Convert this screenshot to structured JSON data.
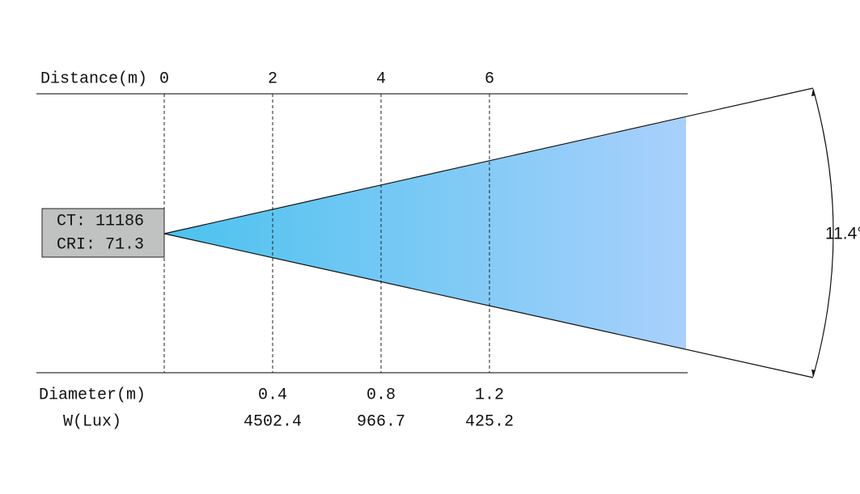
{
  "distance": {
    "label": "Distance(m)",
    "marks": [
      "0",
      "2",
      "4",
      "6"
    ]
  },
  "source": {
    "ct": "CT: 11186",
    "cri": "CRI: 71.3"
  },
  "diameter": {
    "label": "Diameter(m)",
    "values": [
      "0.4",
      "0.8",
      "1.2"
    ]
  },
  "illuminance": {
    "label": "W(Lux)",
    "values": [
      "4502.4",
      "966.7",
      "425.2"
    ]
  },
  "beam_angle": "11.4°"
}
